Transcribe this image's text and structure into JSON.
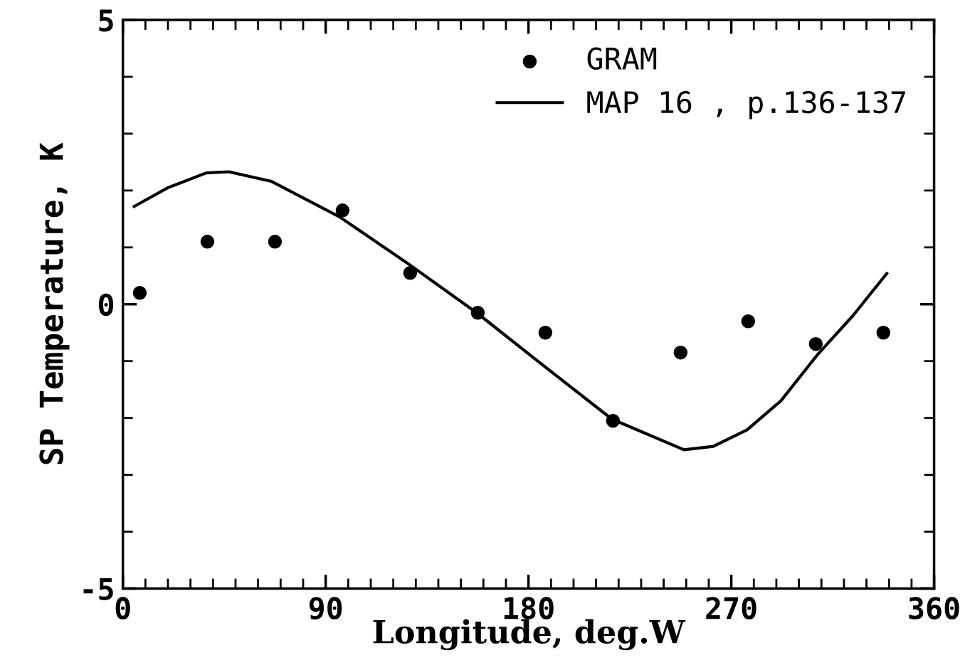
{
  "chart_data": {
    "type": "scatter",
    "xlabel": "Longitude, deg.W",
    "ylabel": "SP Temperature, K",
    "xlim": [
      0,
      360
    ],
    "ylim": [
      -5,
      5
    ],
    "xticks": [
      0,
      {
        "value": 10,
        "label": null
      },
      {
        "value": 20,
        "label": null
      },
      {
        "value": 30,
        "label": null
      },
      {
        "value": 40,
        "label": null
      },
      {
        "value": 50,
        "label": null
      },
      {
        "value": 60,
        "label": null
      },
      {
        "value": 70,
        "label": null
      },
      {
        "value": 80,
        "label": null
      },
      90,
      {
        "value": 100,
        "label": null
      },
      {
        "value": 110,
        "label": null
      },
      {
        "value": 120,
        "label": null
      },
      {
        "value": 130,
        "label": null
      },
      {
        "value": 140,
        "label": null
      },
      {
        "value": 150,
        "label": null
      },
      {
        "value": 160,
        "label": null
      },
      {
        "value": 170,
        "label": null
      },
      180,
      {
        "value": 190,
        "label": null
      },
      {
        "value": 200,
        "label": null
      },
      {
        "value": 210,
        "label": null
      },
      {
        "value": 220,
        "label": null
      },
      {
        "value": 230,
        "label": null
      },
      {
        "value": 240,
        "label": null
      },
      {
        "value": 250,
        "label": null
      },
      {
        "value": 260,
        "label": null
      },
      270,
      {
        "value": 280,
        "label": null
      },
      {
        "value": 290,
        "label": null
      },
      {
        "value": 300,
        "label": null
      },
      {
        "value": 310,
        "label": null
      },
      {
        "value": 320,
        "label": null
      },
      {
        "value": 330,
        "label": null
      },
      {
        "value": 340,
        "label": null
      },
      {
        "value": 350,
        "label": null
      },
      360
    ],
    "yticks": [
      -5,
      {
        "value": -4,
        "label": null
      },
      {
        "value": -3,
        "label": null
      },
      {
        "value": -2,
        "label": null
      },
      {
        "value": -1,
        "label": null
      },
      0,
      {
        "value": 1,
        "label": null
      },
      {
        "value": 2,
        "label": null
      },
      {
        "value": 3,
        "label": null
      },
      {
        "value": 4,
        "label": null
      },
      5
    ],
    "grid": false,
    "legend": "top right",
    "series": [
      {
        "name": "GRAM",
        "marker": "circle",
        "color": "#000000",
        "x": [
          7.5,
          37.5,
          67.5,
          97.5,
          127.5,
          157.5,
          187.5,
          217.5,
          247.5,
          277.5,
          307.5,
          337.5
        ],
        "values": [
          0.2,
          1.1,
          1.1,
          1.65,
          0.55,
          -0.15,
          -0.5,
          -2.05,
          -0.85,
          -0.3,
          -0.7,
          -0.5
        ]
      },
      {
        "name": "MAP 16 , p.136-137",
        "type": "line",
        "marker": "none",
        "line_style": "solid",
        "color": "#000000",
        "x": [
          5,
          20,
          37,
          47,
          66,
          96,
          126,
          157,
          187,
          217,
          249,
          262,
          277,
          292,
          308,
          324,
          339
        ],
        "values": [
          1.72,
          2.05,
          2.31,
          2.33,
          2.16,
          1.54,
          0.73,
          -0.15,
          -1.09,
          -2.02,
          -2.56,
          -2.5,
          -2.21,
          -1.7,
          -0.9,
          -0.2,
          0.54
        ]
      }
    ]
  }
}
